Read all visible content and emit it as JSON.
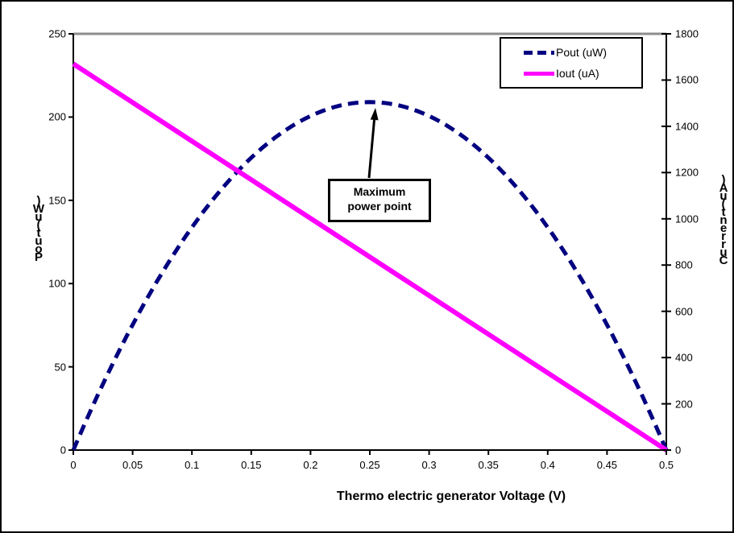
{
  "chart": {
    "x_axis": {
      "title": "Thermo electric generator Voltage (V)",
      "tick_labels": [
        "0",
        "0.05",
        "0.1",
        "0.15",
        "0.2",
        "0.25",
        "0.3",
        "0.35",
        "0.4",
        "0.45",
        "0.5"
      ]
    },
    "left_axis": {
      "title": "Pout (uW)",
      "tick_labels": [
        "0",
        "50",
        "100",
        "150",
        "200",
        "250"
      ]
    },
    "right_axis": {
      "title": "Current (uA)",
      "tick_labels": [
        "0",
        "200",
        "400",
        "600",
        "800",
        "1000",
        "1200",
        "1400",
        "1600",
        "1800"
      ]
    },
    "legend": {
      "items": [
        {
          "label": "Pout (uW)"
        },
        {
          "label": "Iout (uA)"
        }
      ]
    },
    "annotation": {
      "lines": [
        "Maximum",
        "power point"
      ]
    }
  },
  "chart_data": {
    "type": "line",
    "title": "",
    "xlabel": "Thermo electric generator Voltage (V)",
    "x": [
      0,
      0.05,
      0.1,
      0.15,
      0.2,
      0.25,
      0.3,
      0.35,
      0.4,
      0.45,
      0.5
    ],
    "x_range": [
      0,
      0.5
    ],
    "left_axis": {
      "label": "Pout (uW)",
      "range": [
        0,
        250
      ]
    },
    "right_axis": {
      "label": "Current (uA)",
      "range": [
        0,
        1800
      ]
    },
    "grid": "single gray gridline at top (250 / 1800 level)",
    "legend_position": "top-right inside plot",
    "series": [
      {
        "name": "Pout (uW)",
        "axis": "left",
        "color": "#000080",
        "style": "dashed",
        "shape": "parabola",
        "values": [
          0,
          75,
          134,
          175,
          200,
          209,
          200,
          175,
          134,
          75,
          0
        ]
      },
      {
        "name": "Iout (uA)",
        "axis": "right",
        "color": "#FF00FF",
        "style": "solid",
        "shape": "linear",
        "values": [
          1670,
          1503,
          1336,
          1169,
          1002,
          835,
          668,
          501,
          334,
          167,
          0
        ]
      }
    ],
    "annotation": {
      "text": "Maximum power point",
      "points_to": {
        "x": 0.25,
        "pout_uW": 209
      }
    }
  },
  "colors": {
    "axis": "#000000",
    "top_gridline": "#8C8C8C",
    "pout_line": "#000080",
    "iout_line": "#FF00FF",
    "background": "#FFFFFF"
  }
}
